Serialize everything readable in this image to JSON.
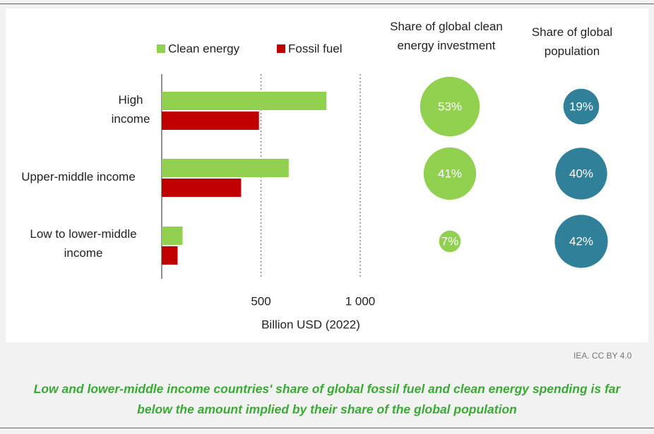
{
  "chart_data": {
    "type": "bar",
    "orientation": "horizontal",
    "categories": [
      "High income",
      "Upper-middle income",
      "Low to lower-middle income"
    ],
    "series": [
      {
        "name": "Clean energy",
        "color": "#92d050",
        "values": [
          830,
          640,
          105
        ]
      },
      {
        "name": "Fossil fuel",
        "color": "#c00000",
        "values": [
          490,
          400,
          80
        ]
      }
    ],
    "xlim": [
      0,
      1150
    ],
    "xticks": [
      500,
      {
        "value": 1000,
        "label": "1 000"
      }
    ],
    "grid": true,
    "xlabel": "Billion USD (2022)",
    "legend": "top",
    "bubbles": [
      {
        "name": "Share of global clean energy investment",
        "color": "#92d050",
        "values": [
          53,
          41,
          7
        ],
        "value_labels": [
          "53%",
          "41%",
          "7%"
        ]
      },
      {
        "name": "Share of global population",
        "color": "#31809a",
        "values": [
          19,
          40,
          42
        ],
        "value_labels": [
          "19%",
          "40%",
          "42%"
        ]
      }
    ],
    "source": "IEA. CC BY 4.0",
    "caption": "Low and lower-middle income countries' share of global fossil fuel and clean energy spending is far below the amount implied by their share of the global population"
  }
}
